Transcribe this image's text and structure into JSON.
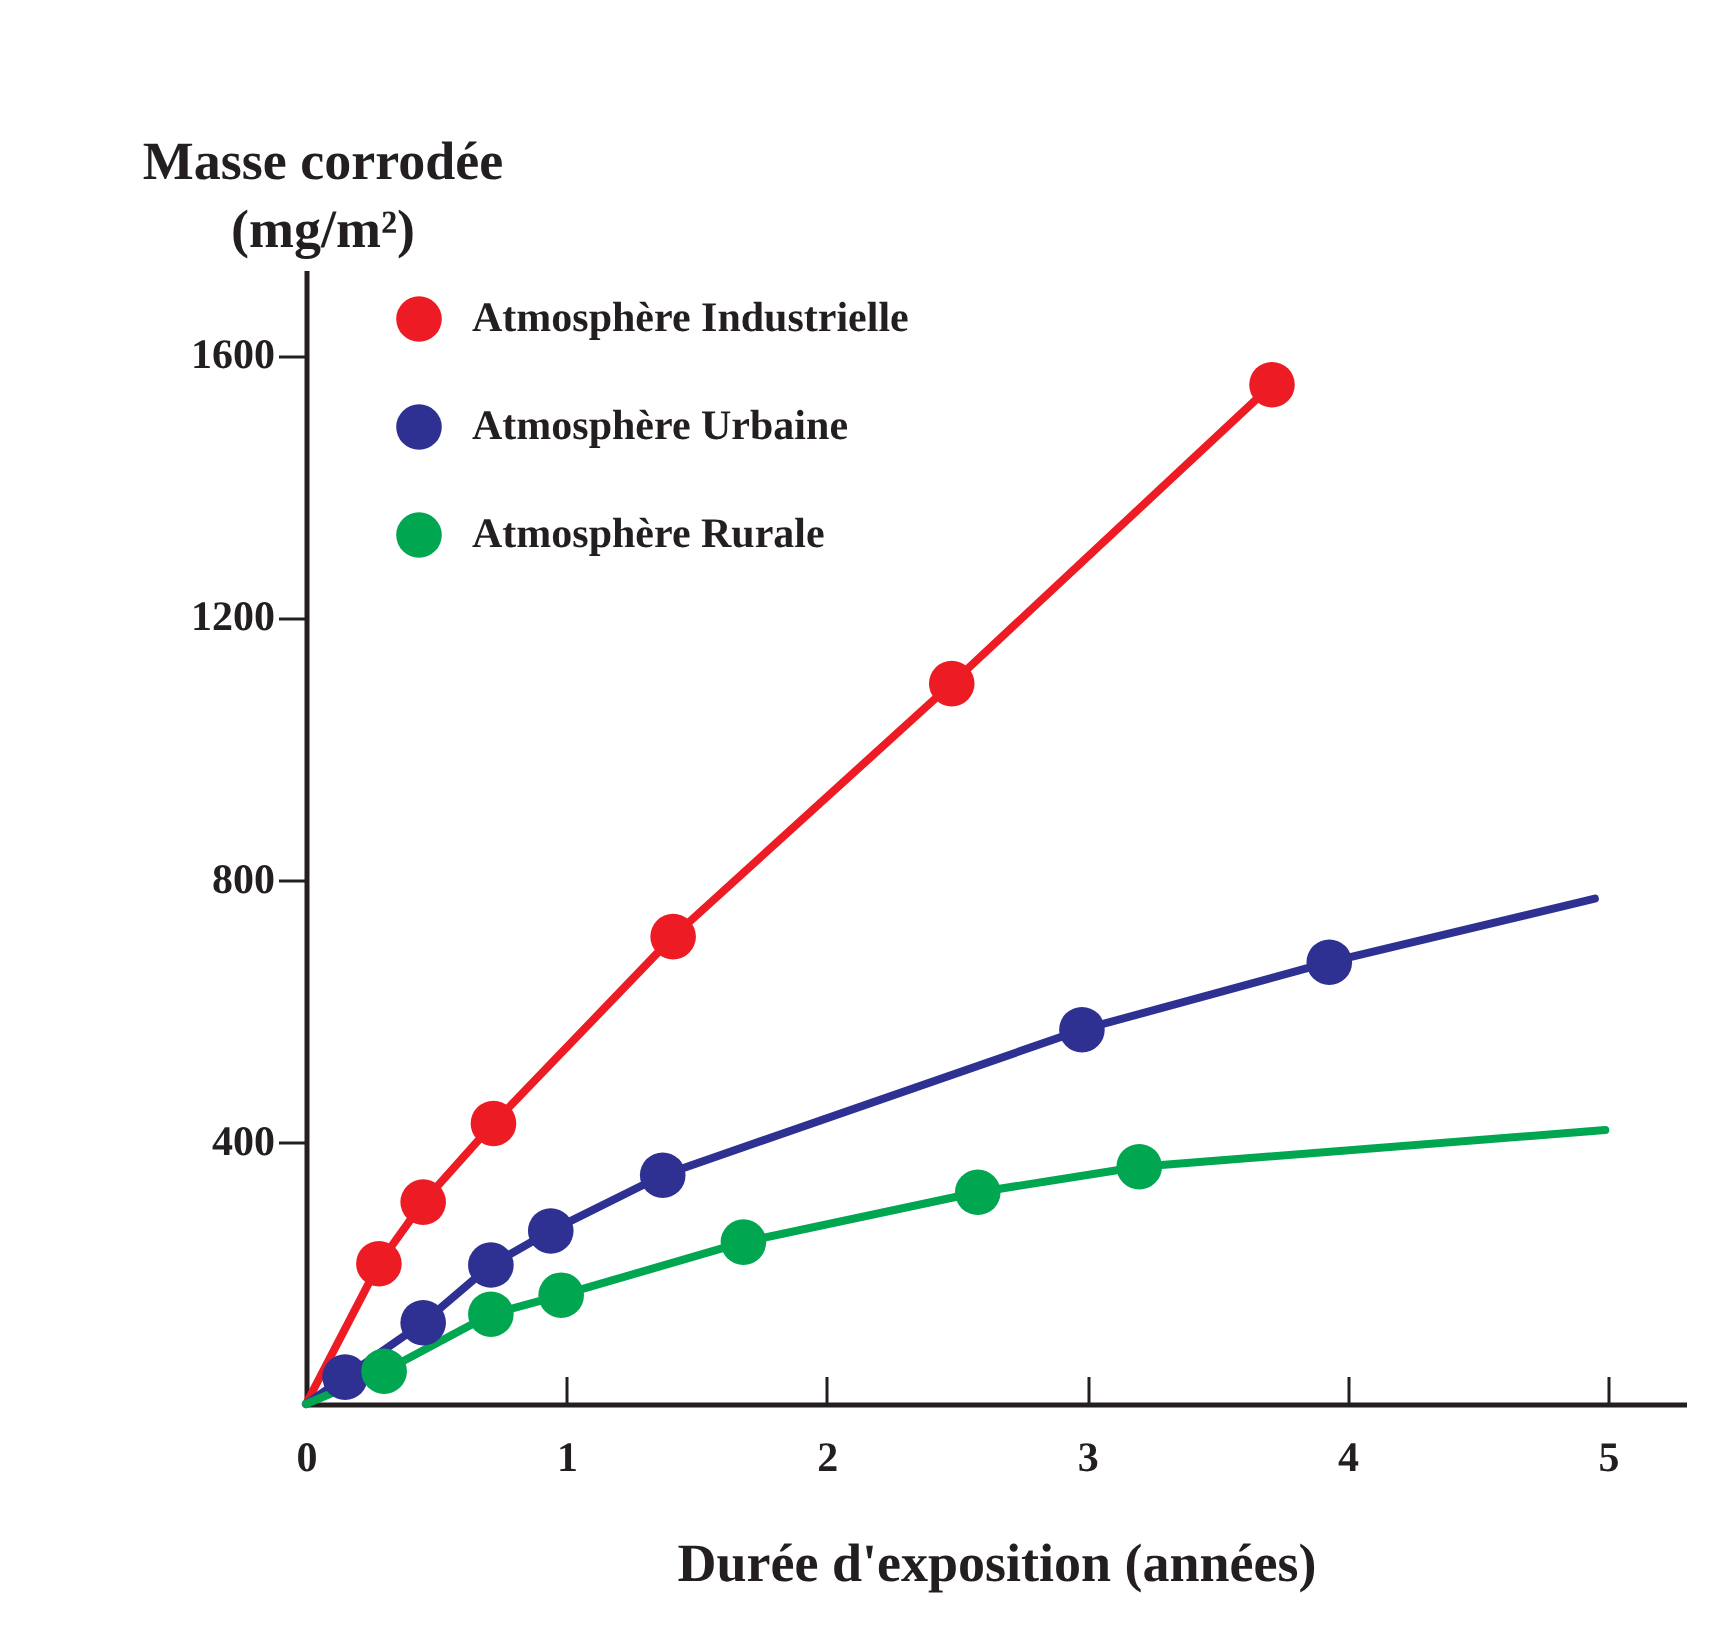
{
  "chart_data": {
    "type": "line",
    "xlabel": "Durée d'exposition (années)",
    "ylabel": "Masse corrodée\n(mg/m²)",
    "xlim": [
      0,
      5.3
    ],
    "ylim": [
      0,
      1730
    ],
    "xticks": [
      0,
      1,
      2,
      3,
      4,
      5
    ],
    "yticks": [
      400,
      800,
      1200,
      1600
    ],
    "grid": false,
    "legend": "top left",
    "series": [
      {
        "color": "#ed1c24",
        "marker": "none",
        "x": [
          0,
          0.28,
          0.45,
          0.72,
          1.41,
          2.48,
          3.71
        ],
        "values": [
          0,
          214,
          308,
          428,
          713,
          1099,
          1555
        ]
      },
      {
        "color": "#2e3192",
        "marker": "none",
        "x": [
          0,
          0.15,
          0.45,
          0.71,
          0.94,
          1.37,
          2.98,
          3.93,
          4.95
        ],
        "values": [
          0,
          41,
          124,
          212,
          264,
          349,
          571,
          674,
          771
        ]
      },
      {
        "color": "#00a650",
        "marker": "none",
        "x": [
          0,
          0.3,
          0.71,
          0.98,
          1.68,
          2.58,
          3.2,
          4.99
        ],
        "values": [
          0,
          50,
          137,
          166,
          247,
          323,
          362,
          418
        ]
      },
      {
        "type": "scatter",
        "name": "Atmosphère Industrielle",
        "color": "#ed1c24",
        "marker": "circle",
        "x": [
          0.28,
          0.45,
          0.72,
          1.41,
          2.48,
          3.71
        ],
        "values": [
          214,
          308,
          428,
          713,
          1099,
          1555
        ]
      },
      {
        "type": "scatter",
        "name": "Atmosphère Urbaine",
        "color": "#2e3192",
        "marker": "circle",
        "x": [
          0.15,
          0.45,
          0.71,
          0.94,
          1.37,
          2.98,
          3.93
        ],
        "values": [
          41,
          124,
          212,
          264,
          349,
          571,
          674
        ]
      },
      {
        "type": "scatter",
        "name": "Atmosphère Rurale",
        "color": "#00a650",
        "marker": "circle",
        "x": [
          0.3,
          0.71,
          0.98,
          1.68,
          2.58,
          3.2
        ],
        "values": [
          50,
          137,
          166,
          247,
          323,
          362
        ]
      }
    ]
  }
}
